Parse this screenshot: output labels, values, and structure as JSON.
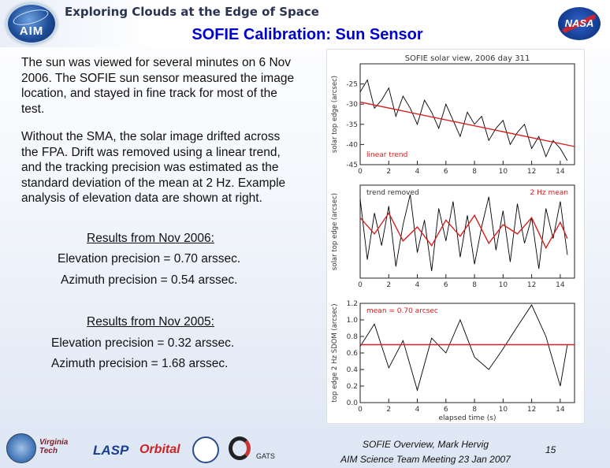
{
  "header": {
    "banner_title": "Exploring Clouds at the Edge of Space",
    "aim_logo_text": "AIM",
    "nasa_logo_text": "NASA"
  },
  "slide": {
    "title": "SOFIE Calibration: Sun Sensor",
    "paragraph1": "The sun was viewed for several minutes on 6 Nov 2006.  The SOFIE sun sensor measured the image location, and stayed in fine track for most of the test.",
    "paragraph2": "Without the SMA, the solar image drifted across the FPA.   Drift was removed using a linear trend, and the tracking precision was estimated as the standard deviation of the mean at 2 Hz.  Example analysis of elevation data are shown at right.",
    "results_2006": {
      "heading": "Results from Nov 2006:",
      "elevation": "Elevation precision = 0.70 arssec.",
      "azimuth": "Azimuth precision = 0.54 arssec."
    },
    "results_2005": {
      "heading": "Results from Nov 2005:",
      "elevation": "Elevation precision = 0.32 arssec.",
      "azimuth": "Azimuth precision = 1.68 arssec."
    }
  },
  "chart_data": [
    {
      "type": "line",
      "title": "SOFIE solar view, 2006 day 311",
      "ylabel": "solar top edge (arcsec)",
      "xlim": [
        0,
        15
      ],
      "ylim": [
        -45,
        -20
      ],
      "xticks": [
        "0",
        "2",
        "4",
        "6",
        "8",
        "10",
        "12",
        "14"
      ],
      "yticks": [
        "-25",
        "-30",
        "-35",
        "-40",
        "-45"
      ],
      "annotation": "linear trend",
      "series": [
        {
          "name": "signal",
          "color": "#000000",
          "x": [
            0,
            0.5,
            1,
            1.5,
            2,
            2.5,
            3,
            3.5,
            4,
            4.5,
            5,
            5.5,
            6,
            6.5,
            7,
            7.5,
            8,
            8.5,
            9,
            9.5,
            10,
            10.5,
            11,
            11.5,
            12,
            12.5,
            13,
            13.5,
            14,
            14.5
          ],
          "y": [
            -27,
            -24,
            -31,
            -29,
            -26,
            -33,
            -28,
            -31,
            -35,
            -29,
            -32,
            -36,
            -30,
            -34,
            -38,
            -32,
            -35,
            -33,
            -39,
            -36,
            -34,
            -40,
            -37,
            -35,
            -41,
            -38,
            -43,
            -39,
            -41,
            -44
          ]
        },
        {
          "name": "linear trend",
          "color": "#d62020",
          "x": [
            0,
            15
          ],
          "y": [
            -29.5,
            -40.5
          ]
        }
      ]
    },
    {
      "type": "line",
      "title": "",
      "ylabel": "solar top edge (arcsec)",
      "xlim": [
        0,
        15
      ],
      "ylim": [
        -2,
        2
      ],
      "xticks": [
        "0",
        "2",
        "4",
        "6",
        "8",
        "10",
        "12",
        "14"
      ],
      "yticks": [],
      "legend": [
        "trend removed",
        "2 Hz mean"
      ],
      "series": [
        {
          "name": "trend removed",
          "color": "#000000",
          "x": [
            0,
            0.5,
            1,
            1.5,
            2,
            2.5,
            3,
            3.5,
            4,
            4.5,
            5,
            5.5,
            6,
            6.5,
            7,
            7.5,
            8,
            8.5,
            9,
            9.5,
            10,
            10.5,
            11,
            11.5,
            12,
            12.5,
            13,
            13.5,
            14,
            14.5
          ],
          "y": [
            1.4,
            -1.2,
            0.8,
            -0.6,
            1.1,
            -1.5,
            0.3,
            1.6,
            -0.9,
            0.5,
            -1.7,
            1.0,
            -0.4,
            1.3,
            -1.1,
            0.7,
            -1.4,
            0.2,
            1.5,
            -0.8,
            0.9,
            -1.3,
            1.2,
            -0.5,
            0.6,
            -1.6,
            1.0,
            -0.3,
            1.3,
            -1.0
          ]
        },
        {
          "name": "2 Hz mean",
          "color": "#d62020",
          "x": [
            0,
            1,
            2,
            3,
            4,
            5,
            6,
            7,
            8,
            9,
            10,
            11,
            12,
            13,
            14,
            14.5
          ],
          "y": [
            0.6,
            -0.1,
            0.8,
            -0.4,
            0.2,
            -0.6,
            0.5,
            -0.2,
            0.7,
            -0.5,
            0.3,
            -0.1,
            0.6,
            -0.7,
            0.4,
            -0.3
          ]
        }
      ]
    },
    {
      "type": "line",
      "title": "",
      "xlabel": "elapsed time (s)",
      "ylabel": "top edge 2 Hz SDOM (arcsec)",
      "xlim": [
        0,
        15
      ],
      "ylim": [
        0.0,
        1.2
      ],
      "xticks": [
        "0",
        "2",
        "4",
        "6",
        "8",
        "10",
        "12",
        "14"
      ],
      "yticks": [
        "0.0",
        "0.2",
        "0.4",
        "0.6",
        "0.8",
        "1.0",
        "1.2"
      ],
      "annotation": "mean = 0.70 arcsec",
      "series": [
        {
          "name": "SDOM",
          "color": "#000000",
          "x": [
            0,
            1,
            2,
            3,
            4,
            5,
            6,
            7,
            8,
            9,
            10,
            11,
            12,
            13,
            14,
            14.5
          ],
          "y": [
            0.68,
            0.95,
            0.42,
            0.75,
            0.15,
            0.78,
            0.6,
            1.0,
            0.55,
            0.4,
            0.65,
            0.92,
            1.18,
            0.8,
            0.2,
            0.7
          ]
        },
        {
          "name": "mean",
          "color": "#d62020",
          "x": [
            0,
            15
          ],
          "y": [
            0.7,
            0.7
          ]
        }
      ]
    }
  ],
  "footer": {
    "line1": "SOFIE Overview, Mark Hervig",
    "line2": "AIM Science Team Meeting 23 Jan 2007",
    "page_number": "15",
    "partner_logos": [
      "Virginia Tech",
      "LASP",
      "Orbital",
      "GATS"
    ]
  }
}
